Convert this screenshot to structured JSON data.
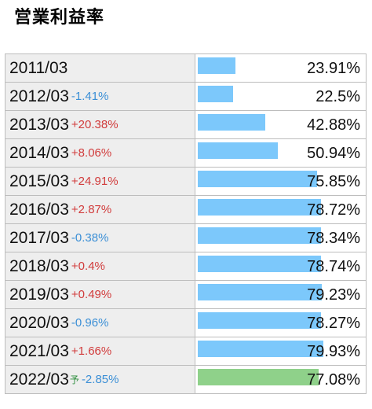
{
  "title": "営業利益率",
  "colors": {
    "bar": "#7cc8fb",
    "forecast_bar": "#8fd18a",
    "increase": "#d13b3b",
    "decrease": "#3b8fd6",
    "forecast_mark": "#2f8f3f",
    "label_bg": "#eeeeee"
  },
  "chart_data": {
    "type": "bar",
    "orientation": "horizontal",
    "title": "営業利益率",
    "scale_max": 100,
    "unit": "%",
    "rows": [
      {
        "period": "2011/03",
        "forecast_mark": "",
        "change": "",
        "value": 23.91,
        "value_label": "23.91%"
      },
      {
        "period": "2012/03",
        "forecast_mark": "",
        "change": "-1.41%",
        "value": 22.5,
        "value_label": "22.5%"
      },
      {
        "period": "2013/03",
        "forecast_mark": "",
        "change": "+20.38%",
        "value": 42.88,
        "value_label": "42.88%"
      },
      {
        "period": "2014/03",
        "forecast_mark": "",
        "change": "+8.06%",
        "value": 50.94,
        "value_label": "50.94%"
      },
      {
        "period": "2015/03",
        "forecast_mark": "",
        "change": "+24.91%",
        "value": 75.85,
        "value_label": "75.85%"
      },
      {
        "period": "2016/03",
        "forecast_mark": "",
        "change": "+2.87%",
        "value": 78.72,
        "value_label": "78.72%"
      },
      {
        "period": "2017/03",
        "forecast_mark": "",
        "change": "-0.38%",
        "value": 78.34,
        "value_label": "78.34%"
      },
      {
        "period": "2018/03",
        "forecast_mark": "",
        "change": "+0.4%",
        "value": 78.74,
        "value_label": "78.74%"
      },
      {
        "period": "2019/03",
        "forecast_mark": "",
        "change": "+0.49%",
        "value": 79.23,
        "value_label": "79.23%"
      },
      {
        "period": "2020/03",
        "forecast_mark": "",
        "change": "-0.96%",
        "value": 78.27,
        "value_label": "78.27%"
      },
      {
        "period": "2021/03",
        "forecast_mark": "",
        "change": "+1.66%",
        "value": 79.93,
        "value_label": "79.93%"
      },
      {
        "period": "2022/03",
        "forecast_mark": "予",
        "change": "-2.85%",
        "value": 77.08,
        "value_label": "77.08%"
      }
    ]
  }
}
